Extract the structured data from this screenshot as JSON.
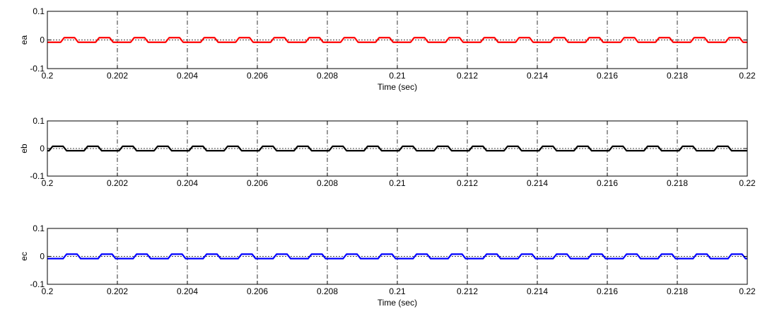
{
  "chart_data": [
    {
      "type": "line",
      "ylabel": "ea",
      "xlabel": "Time (sec)",
      "xlim": [
        0.2,
        0.22
      ],
      "ylim": [
        -0.1,
        0.1
      ],
      "xticks": [
        "0.2",
        "0.202",
        "0.204",
        "0.206",
        "0.208",
        "0.21",
        "0.212",
        "0.214",
        "0.216",
        "0.218",
        "0.22"
      ],
      "yticks": [
        "0.1",
        "0",
        "-0.1"
      ],
      "grid": "vertical dash-dot",
      "zero_line": "dotted",
      "series": [
        {
          "color": "#ff0000",
          "shape": "trapezoidal",
          "amplitude": 0.008,
          "period": 0.001,
          "x": [
            0.2,
            0.20025,
            0.2004,
            0.2005,
            0.2006,
            0.20075,
            0.2009,
            0.201,
            0.2011,
            0.20125
          ],
          "y": [
            -0.008,
            -0.008,
            -0.008,
            0.008,
            0.008,
            0.008,
            0.008,
            -0.008,
            -0.008,
            -0.008
          ]
        }
      ]
    },
    {
      "type": "line",
      "ylabel": "eb",
      "xlabel": "",
      "xlim": [
        0.2,
        0.22
      ],
      "ylim": [
        -0.1,
        0.1
      ],
      "xticks": [
        "0.2",
        "0.202",
        "0.204",
        "0.206",
        "0.208",
        "0.21",
        "0.212",
        "0.214",
        "0.216",
        "0.218",
        "0.22"
      ],
      "yticks": [
        "0.1",
        "0",
        "-0.1"
      ],
      "grid": "vertical dash-dot",
      "zero_line": "dotted",
      "series": [
        {
          "color": "#000000",
          "shape": "trapezoidal",
          "amplitude": 0.008,
          "period": 0.001,
          "x": [
            0.2,
            0.2001,
            0.20025,
            0.20042,
            0.2005,
            0.20058,
            0.20075,
            0.2009,
            0.201
          ],
          "y": [
            0.0,
            0.008,
            0.008,
            0.008,
            -0.008,
            -0.008,
            -0.008,
            -0.008,
            0.008
          ]
        }
      ]
    },
    {
      "type": "line",
      "ylabel": "ec",
      "xlabel": "Time (sec)",
      "xlim": [
        0.2,
        0.22
      ],
      "ylim": [
        -0.1,
        0.1
      ],
      "xticks": [
        "0.2",
        "0.202",
        "0.204",
        "0.206",
        "0.208",
        "0.21",
        "0.212",
        "0.214",
        "0.216",
        "0.218",
        "0.22"
      ],
      "yticks": [
        "0.1",
        "0",
        "-0.1"
      ],
      "grid": "vertical dash-dot",
      "zero_line": "dotted",
      "series": [
        {
          "color": "#0000ff",
          "shape": "trapezoidal",
          "amplitude": 0.008,
          "period": 0.001,
          "x": [
            0.2,
            0.2001,
            0.20025,
            0.2004,
            0.2005,
            0.2006,
            0.20075,
            0.2009,
            0.201
          ],
          "y": [
            0.008,
            0.008,
            -0.008,
            -0.008,
            -0.008,
            0.008,
            0.008,
            0.008,
            0.008
          ]
        }
      ]
    }
  ]
}
